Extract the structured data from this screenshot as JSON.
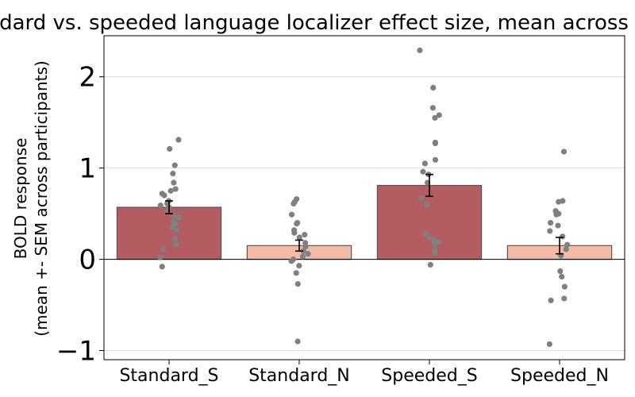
{
  "chart_data": {
    "type": "bar",
    "title": "Standard vs. speeded language localizer effect size, mean across ROIs",
    "ylabel_line1": "BOLD response",
    "ylabel_line2": "(mean +- SEM across participants)",
    "xlabel": "",
    "ylim": [
      -1.1,
      2.45
    ],
    "yticks": [
      -1,
      0,
      1,
      2
    ],
    "ytick_labels": [
      "−1",
      "0",
      "1",
      "2"
    ],
    "grid": "horizontal",
    "categories": [
      "Standard_S",
      "Standard_N",
      "Speeded_S",
      "Speeded_N"
    ],
    "values": [
      0.57,
      0.15,
      0.81,
      0.15
    ],
    "sem": [
      0.07,
      0.06,
      0.12,
      0.09
    ],
    "colors": {
      "S_fill": "#b35c62",
      "N_fill": "#f3bba6",
      "bar_edge": "#555555",
      "points": "#808080",
      "grid": "#dddddd"
    },
    "points": [
      [
        1.31,
        1.21,
        1.03,
        0.94,
        0.84,
        0.77,
        0.75,
        0.72,
        0.7,
        0.64,
        0.61,
        0.59,
        0.57,
        0.52,
        0.48,
        0.46,
        0.41,
        0.39,
        0.35,
        0.32,
        0.22,
        0.16,
        0.11,
        0.02,
        -0.08
      ],
      [
        0.66,
        0.63,
        0.61,
        0.49,
        0.4,
        0.39,
        0.32,
        0.29,
        0.27,
        0.24,
        0.18,
        0.14,
        0.09,
        0.06,
        0.03,
        0.0,
        -0.02,
        -0.07,
        -0.15,
        -0.27,
        -0.9
      ],
      [
        2.29,
        1.88,
        1.66,
        1.58,
        1.55,
        1.28,
        1.27,
        1.09,
        1.05,
        0.96,
        0.93,
        0.84,
        0.67,
        0.6,
        0.28,
        0.24,
        0.21,
        0.19,
        0.17,
        0.1,
        0.07,
        -0.06
      ],
      [
        1.18,
        0.64,
        0.63,
        0.53,
        0.5,
        0.49,
        0.4,
        0.37,
        0.31,
        0.25,
        0.16,
        0.11,
        0.04,
        -0.13,
        -0.19,
        -0.3,
        -0.43,
        -0.45,
        -0.93
      ]
    ]
  }
}
